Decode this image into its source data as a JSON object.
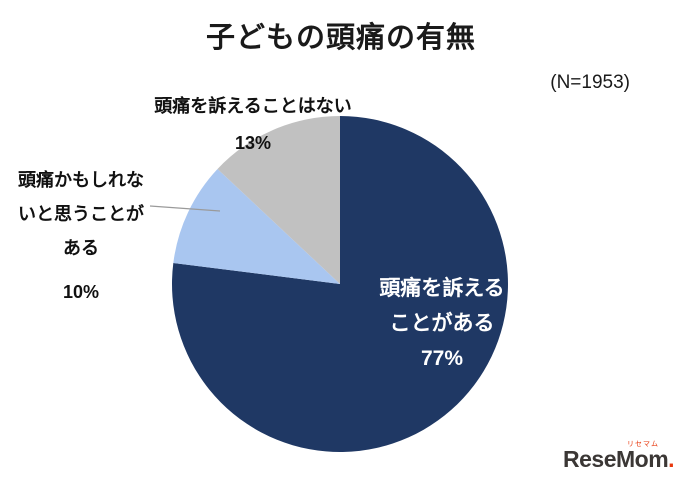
{
  "chart": {
    "title": "子どもの頭痛の有無",
    "sample_label": "(N=1953)"
  },
  "chart_data": {
    "type": "pie",
    "title": "子どもの頭痛の有無",
    "sample_label": "(N=1953)",
    "start_angle_deg": 0,
    "direction": "clockwise",
    "legend_position": "none",
    "slices": [
      {
        "label": "頭痛を訴えることがある",
        "value": 77,
        "color": "#1F3864",
        "label_placement": "inside",
        "label_color": "#ffffff"
      },
      {
        "label": "頭痛かもしれないと思うことがある",
        "value": 10,
        "color": "#A9C6F0",
        "label_placement": "outside-left",
        "leader_line": true
      },
      {
        "label": "頭痛を訴えることはない",
        "value": 13,
        "color": "#C1C1C1",
        "label_placement": "outside-top"
      }
    ]
  },
  "labels": {
    "inside": {
      "line1": "頭痛を訴える",
      "line2": "ことがある",
      "line3": "77%"
    },
    "top": {
      "line1": "頭痛を訴えることはない",
      "line2": "13%"
    },
    "left": {
      "line1": "頭痛かもしれな",
      "line2": "いと思うことが",
      "line3": "ある",
      "line4": "10%"
    }
  },
  "logo": {
    "main": "ReseMom",
    "furigana": "リセマム",
    "dot": "."
  }
}
